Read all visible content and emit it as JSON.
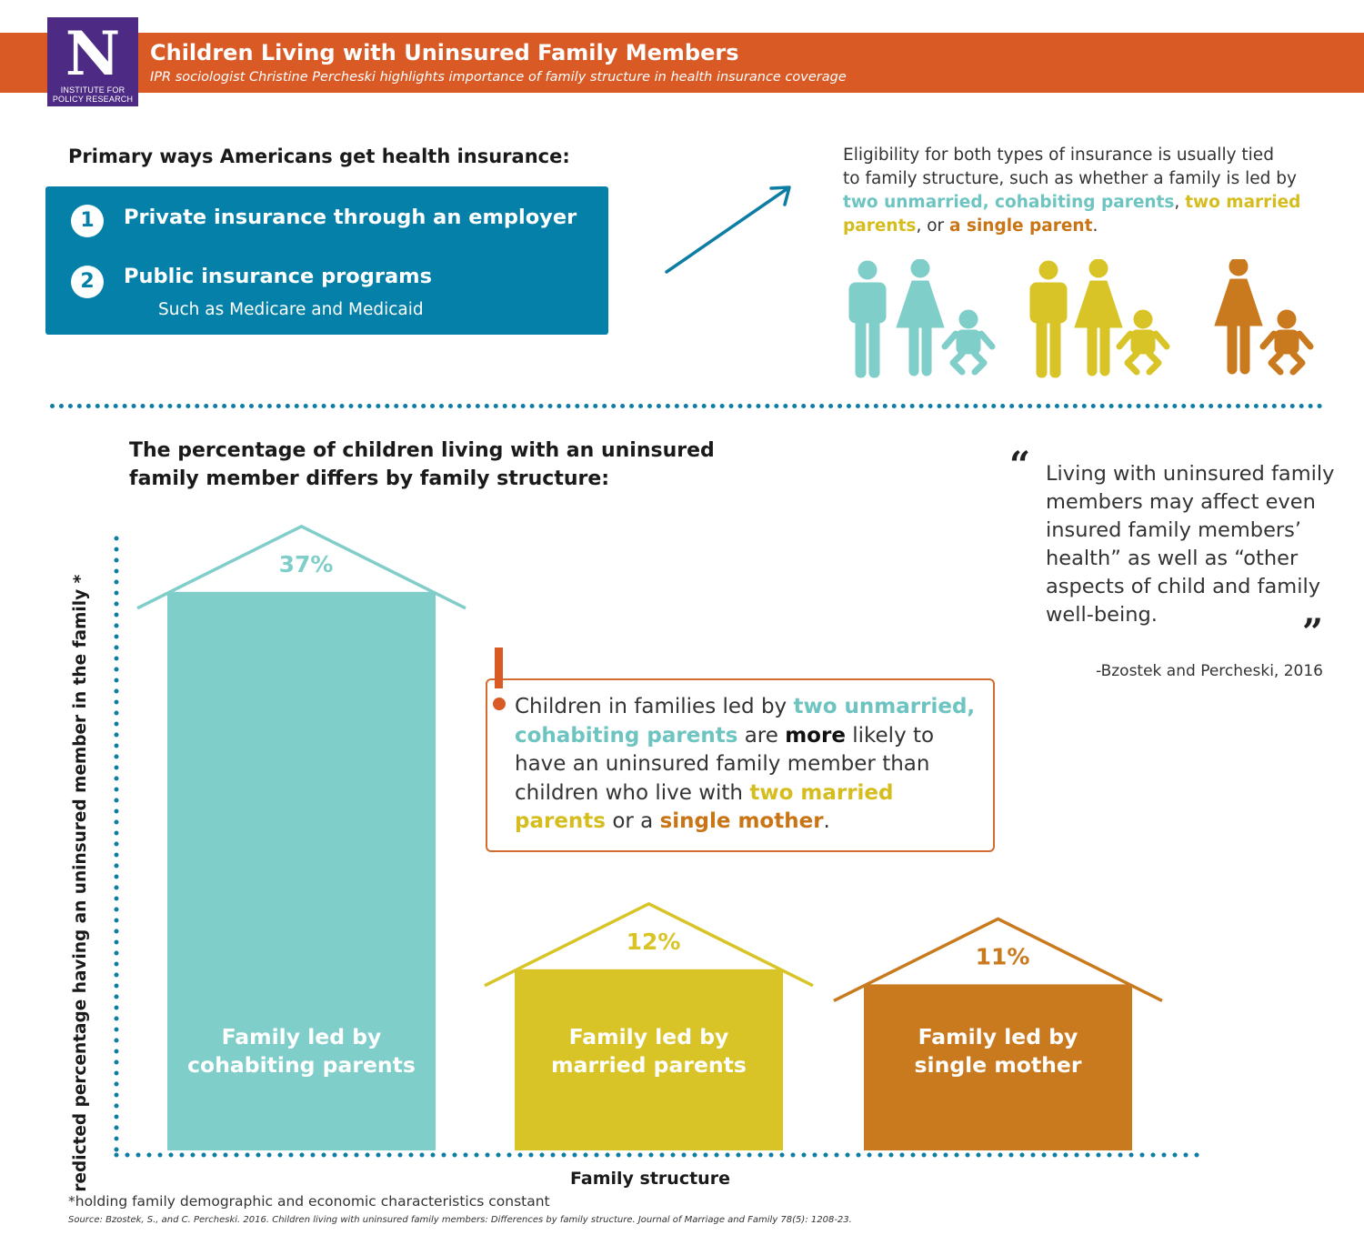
{
  "header": {
    "logo_letter": "N",
    "logo_line1": "INSTITUTE FOR",
    "logo_line2": "POLICY RESEARCH",
    "title": "Children Living with Uninsured Family Members",
    "subtitle": "IPR sociologist Christine Percheski highlights importance of family structure in health insurance coverage"
  },
  "primary": {
    "heading": "Primary ways Americans get health insurance:",
    "items": [
      {
        "num": "1",
        "label": "Private insurance through an employer",
        "sub": ""
      },
      {
        "num": "2",
        "label": "Public insurance programs",
        "sub": "Such as Medicare and Medicaid"
      }
    ]
  },
  "eligibility": {
    "line1": "Eligibility for both types of insurance is usually tied",
    "line2": "to family structure, such as whether a family is led by",
    "cohab": "two unmarried, cohabiting parents",
    "comma": ",",
    "married_a": "two married",
    "married_b": "parents",
    "or_text": ", or",
    "single": "a single parent",
    "period": "."
  },
  "colors": {
    "cohabiting": "#80cec9",
    "married": "#d9c428",
    "single": "#c97a1e",
    "accent": "#d95a25",
    "blue": "#0580a8"
  },
  "chart_heading": {
    "line1": "The percentage of children living with an uninsured",
    "line2": "family member differs by family structure:"
  },
  "quote": {
    "open": "“",
    "text": "Living with uninsured family members may affect even insured family members’ health” as well as “other aspects of child and family well-being.",
    "close": "”",
    "citation": "-Bzostek and Percheski, 2016"
  },
  "callout": {
    "p1": "Children in families led by",
    "h1": "two unmarried,",
    "h2": "cohabiting parents",
    "p2": "are",
    "bold": "more",
    "p3": "likely to",
    "p4": "have an uninsured family member than",
    "p5": "children who live with",
    "h3": "two married",
    "h4": "parents",
    "p6": "or a",
    "h5": "single mother",
    "p7": "."
  },
  "chart_data": {
    "type": "bar",
    "ylabel": "Predicted percentage having an uninsured member in the family *",
    "xlabel": "Family structure",
    "categories": [
      "Family led by cohabiting parents",
      "Family led by married parents",
      "Family led by single mother"
    ],
    "category_lines": [
      [
        "Family led by",
        "cohabiting parents"
      ],
      [
        "Family led by",
        "married parents"
      ],
      [
        "Family led by",
        "single mother"
      ]
    ],
    "values": [
      37,
      12,
      11
    ],
    "value_labels": [
      "37%",
      "12%",
      "11%"
    ],
    "colors": [
      "#80cec9",
      "#d9c428",
      "#c97a1e"
    ],
    "ylim": [
      0,
      40
    ]
  },
  "footnote": "*holding family demographic and economic characteristics constant",
  "source": "Source: Bzostek, S., and C. Percheski. 2016. Children living with uninsured family members: Differences by family structure. Journal of Marriage and Family 78(5): 1208-23."
}
